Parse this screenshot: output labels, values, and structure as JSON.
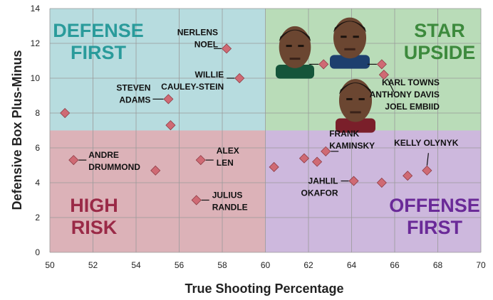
{
  "chart_data": {
    "type": "scatter",
    "title": "",
    "xlabel": "True Shooting Percentage",
    "ylabel": "Defensive Box Plus-Minus",
    "xlim": [
      50,
      70
    ],
    "ylim": [
      0,
      14
    ],
    "x_ticks": [
      "50",
      "52",
      "54",
      "56",
      "58",
      "60",
      "62",
      "64",
      "66",
      "68",
      "70"
    ],
    "y_ticks": [
      "0",
      "2",
      "4",
      "6",
      "8",
      "10",
      "12",
      "14"
    ],
    "grid": true,
    "x_split": 60,
    "y_split": 7,
    "quadrants": [
      {
        "id": "defense-first",
        "lines": [
          "DEFENSE",
          "FIRST"
        ],
        "color": "#2a9b9b",
        "fill": "#b7dcdf"
      },
      {
        "id": "star-upside",
        "lines": [
          "STAR",
          "UPSIDE"
        ],
        "color": "#3d8a3d",
        "fill": "#b9dcb8"
      },
      {
        "id": "high-risk",
        "lines": [
          "HIGH",
          "RISK"
        ],
        "color": "#9a2a47",
        "fill": "#dcb2b8"
      },
      {
        "id": "offense-first",
        "lines": [
          "OFFENSE",
          "FIRST"
        ],
        "color": "#6a2a98",
        "fill": "#cdb8dd"
      }
    ],
    "marker_color": "#cf6a74",
    "points": [
      {
        "x": 50.7,
        "y": 8.0,
        "label": []
      },
      {
        "x": 51.1,
        "y": 5.3,
        "label": [
          "ANDRE",
          "DRUMMOND"
        ]
      },
      {
        "x": 54.9,
        "y": 4.7,
        "label": []
      },
      {
        "x": 55.5,
        "y": 8.8,
        "label": [
          "STEVEN",
          "ADAMS"
        ]
      },
      {
        "x": 55.6,
        "y": 7.3,
        "label": []
      },
      {
        "x": 56.8,
        "y": 3.0,
        "label": [
          "JULIUS",
          "RANDLE"
        ]
      },
      {
        "x": 57.0,
        "y": 5.3,
        "label": [
          "ALEX",
          "LEN"
        ]
      },
      {
        "x": 58.2,
        "y": 11.7,
        "label": [
          "NERLENS",
          "NOEL"
        ]
      },
      {
        "x": 58.8,
        "y": 10.0,
        "label": [
          "WILLIE",
          "CAULEY-STEIN"
        ]
      },
      {
        "x": 60.4,
        "y": 4.9,
        "label": []
      },
      {
        "x": 61.8,
        "y": 5.4,
        "label": []
      },
      {
        "x": 62.4,
        "y": 5.2,
        "label": []
      },
      {
        "x": 62.8,
        "y": 5.8,
        "label": [
          "FRANK",
          "KAMINSKY"
        ]
      },
      {
        "x": 64.1,
        "y": 4.1,
        "label": [
          "JAHLIL",
          "OKAFOR"
        ]
      },
      {
        "x": 65.4,
        "y": 4.0,
        "label": []
      },
      {
        "x": 66.6,
        "y": 4.4,
        "label": []
      },
      {
        "x": 67.5,
        "y": 4.7,
        "label": [
          "KELLY OLYNYK"
        ]
      },
      {
        "x": 62.7,
        "y": 10.8,
        "label": []
      },
      {
        "x": 65.4,
        "y": 10.8,
        "label": []
      },
      {
        "x": 65.5,
        "y": 10.2,
        "label": [
          "KARL TOWNS",
          "ANTHONY DAVIS",
          "JOEL EMBIID"
        ]
      }
    ]
  }
}
